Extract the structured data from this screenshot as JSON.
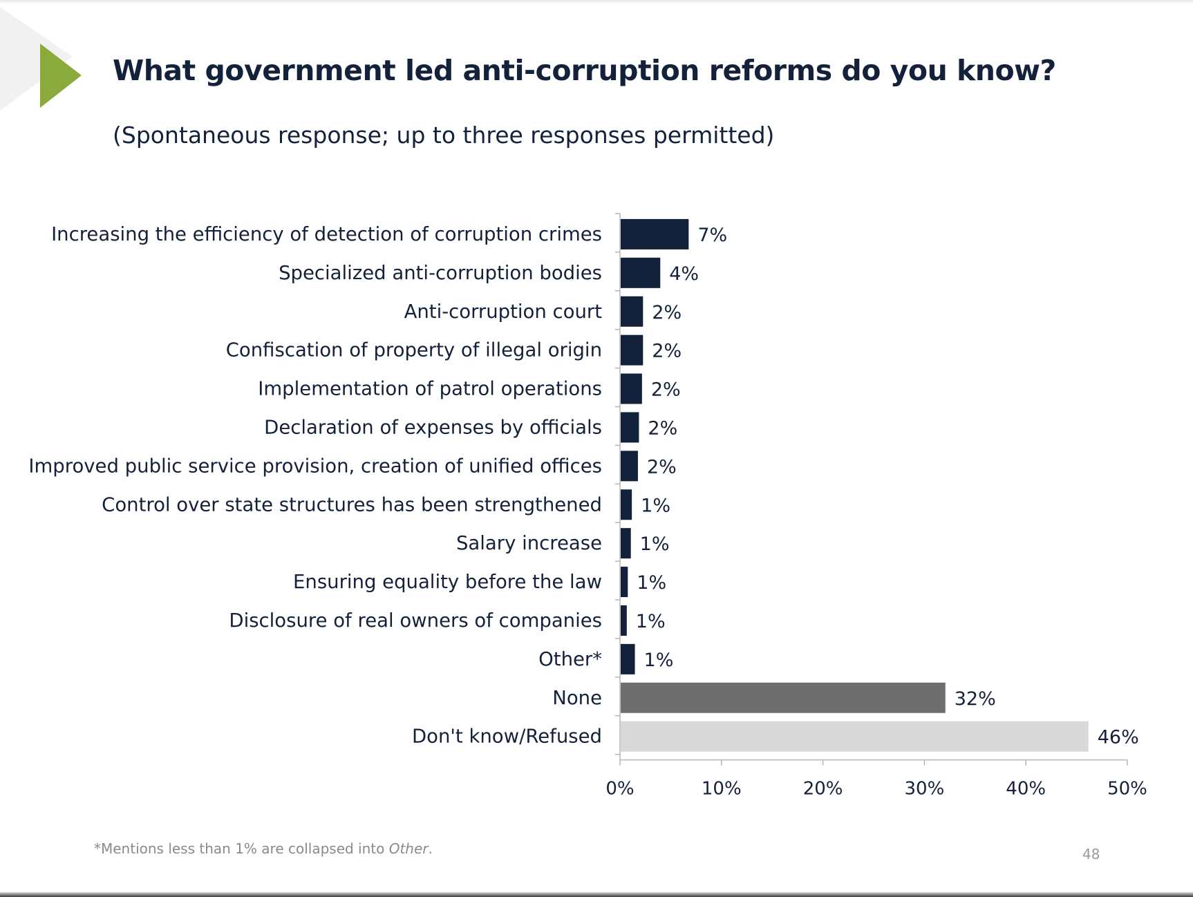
{
  "slide": {
    "title": "What government led anti-corruption reforms do you know?",
    "subtitle": "(Spontaneous response; up to three responses permitted)",
    "footnote_prefix": "*Mentions less than 1% are collapsed into ",
    "footnote_em": "Other",
    "footnote_suffix": ".",
    "page_number": "48",
    "accent_color": "#8aab3c"
  },
  "chart_data": {
    "type": "bar",
    "orientation": "horizontal",
    "categories": [
      "Increasing the efficiency of detection of corruption crimes",
      "Specialized anti-corruption bodies",
      "Anti-corruption court",
      "Confiscation of property of illegal origin",
      "Implementation of patrol operations",
      "Declaration of expenses by officials",
      "Improved public service provision, creation of unified offices",
      "Control over state structures has been strengthened",
      "Salary increase",
      "Ensuring equality before the law",
      "Disclosure of real owners of companies",
      "Other*",
      "None",
      "Don't know/Refused"
    ],
    "values": [
      6.7,
      3.9,
      2.2,
      2.2,
      2.1,
      1.8,
      1.7,
      1.1,
      1.0,
      0.7,
      0.6,
      1.4,
      32,
      46.1
    ],
    "data_labels": [
      "7%",
      "4%",
      "2%",
      "2%",
      "2%",
      "2%",
      "2%",
      "1%",
      "1%",
      "1%",
      "1%",
      "1%",
      "32%",
      "46%"
    ],
    "colors": [
      "#13213b",
      "#13213b",
      "#13213b",
      "#13213b",
      "#13213b",
      "#13213b",
      "#13213b",
      "#13213b",
      "#13213b",
      "#13213b",
      "#13213b",
      "#13213b",
      "#6e6e6e",
      "#d9d9d9"
    ],
    "xlim": [
      0,
      50
    ],
    "xticks": [
      0,
      10,
      20,
      30,
      40,
      50
    ],
    "xtick_labels": [
      "0%",
      "10%",
      "20%",
      "30%",
      "40%",
      "50%"
    ],
    "grid": false,
    "legend": "none"
  }
}
